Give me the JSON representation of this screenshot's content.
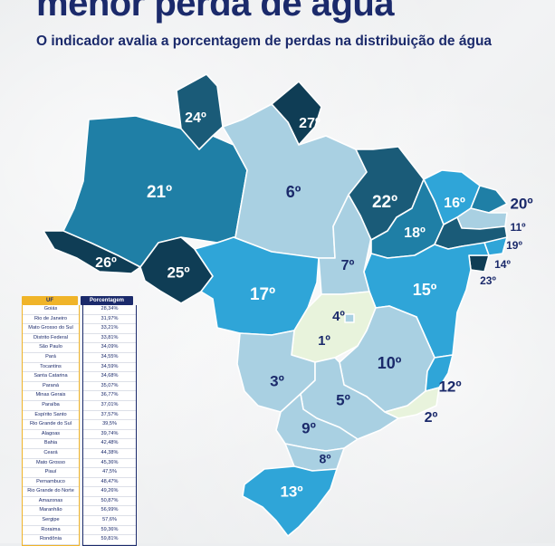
{
  "header": {
    "title": "menor perda de água",
    "subtitle": "O indicador avalia a porcentagem de perdas na distribuição de água"
  },
  "colors": {
    "rank_1_5": "#e8f3dc",
    "rank_light": "#a9d0e2",
    "rank_mid": "#2fa5d8",
    "rank_teal": "#1f7fa6",
    "rank_dark": "#1a5b78",
    "rank_darkest": "#0f3d55",
    "uf_header": "#f0b429",
    "pct_header": "#1b2a6b",
    "text": "#1b2a6b"
  },
  "map": {
    "states": [
      {
        "id": "AM",
        "rank": "21º"
      },
      {
        "id": "RR",
        "rank": "24º"
      },
      {
        "id": "AP",
        "rank": "27º"
      },
      {
        "id": "PA",
        "rank": "6º"
      },
      {
        "id": "AC",
        "rank": "26º"
      },
      {
        "id": "RO",
        "rank": "25º"
      },
      {
        "id": "MT",
        "rank": "17º"
      },
      {
        "id": "TO",
        "rank": "7º"
      },
      {
        "id": "MA",
        "rank": "22º"
      },
      {
        "id": "PI",
        "rank": "18º"
      },
      {
        "id": "CE",
        "rank": "16º"
      },
      {
        "id": "RN",
        "rank": "20º"
      },
      {
        "id": "PB",
        "rank": "11º"
      },
      {
        "id": "PE",
        "rank": "19º"
      },
      {
        "id": "AL",
        "rank": "14º"
      },
      {
        "id": "SE",
        "rank": "23º"
      },
      {
        "id": "BA",
        "rank": "15º"
      },
      {
        "id": "DF",
        "rank": "4º"
      },
      {
        "id": "GO",
        "rank": "1º"
      },
      {
        "id": "MG",
        "rank": "10º"
      },
      {
        "id": "ES",
        "rank": "12º"
      },
      {
        "id": "RJ",
        "rank": "2º"
      },
      {
        "id": "MS",
        "rank": "3º"
      },
      {
        "id": "SP",
        "rank": "5º"
      },
      {
        "id": "PR",
        "rank": "9º"
      },
      {
        "id": "SC",
        "rank": "8º"
      },
      {
        "id": "RS",
        "rank": "13º"
      }
    ]
  },
  "table": {
    "headers": {
      "uf": "UF",
      "pct": "Porcentagem"
    },
    "rows": [
      {
        "uf": "Goiás",
        "pct": "28,34%"
      },
      {
        "uf": "Rio de Janeiro",
        "pct": "31,97%"
      },
      {
        "uf": "Mato Grosso do Sul",
        "pct": "33,21%"
      },
      {
        "uf": "Distrito Federal",
        "pct": "33,81%"
      },
      {
        "uf": "São Paulo",
        "pct": "34,09%"
      },
      {
        "uf": "Pará",
        "pct": "34,55%"
      },
      {
        "uf": "Tocantins",
        "pct": "34,59%"
      },
      {
        "uf": "Santa Catarina",
        "pct": "34,68%"
      },
      {
        "uf": "Paraná",
        "pct": "35,07%"
      },
      {
        "uf": "Minas Gerais",
        "pct": "36,77%"
      },
      {
        "uf": "Paraíba",
        "pct": "37,01%"
      },
      {
        "uf": "Espírito Santo",
        "pct": "37,57%"
      },
      {
        "uf": "Rio Grande do Sul",
        "pct": "39,5%"
      },
      {
        "uf": "Alagoas",
        "pct": "39,74%"
      },
      {
        "uf": "Bahia",
        "pct": "42,48%"
      },
      {
        "uf": "Ceará",
        "pct": "44,38%"
      },
      {
        "uf": "Mato Grosso",
        "pct": "45,36%"
      },
      {
        "uf": "Piauí",
        "pct": "47,5%"
      },
      {
        "uf": "Pernambuco",
        "pct": "48,47%"
      },
      {
        "uf": "Rio Grande do Norte",
        "pct": "49,26%"
      },
      {
        "uf": "Amazonas",
        "pct": "50,87%"
      },
      {
        "uf": "Maranhão",
        "pct": "56,99%"
      },
      {
        "uf": "Sergipe",
        "pct": "57,6%"
      },
      {
        "uf": "Roraima",
        "pct": "59,36%"
      },
      {
        "uf": "Rondônia",
        "pct": "59,81%"
      }
    ]
  }
}
